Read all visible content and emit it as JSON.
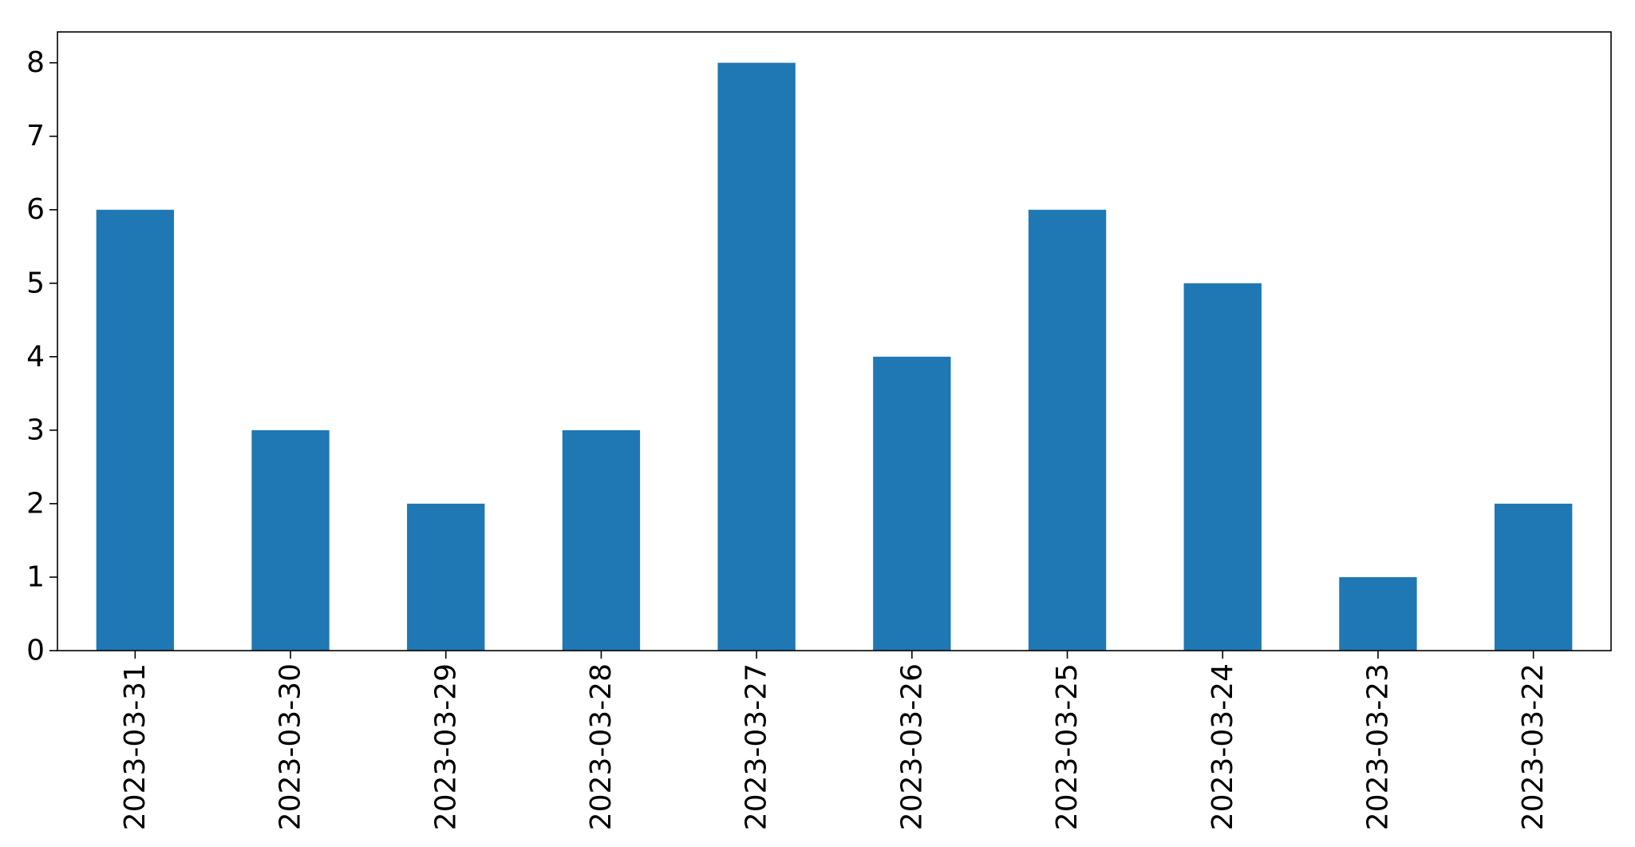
{
  "chart_data": {
    "type": "bar",
    "categories": [
      "2023-03-31",
      "2023-03-30",
      "2023-03-29",
      "2023-03-28",
      "2023-03-27",
      "2023-03-26",
      "2023-03-25",
      "2023-03-24",
      "2023-03-23",
      "2023-03-22"
    ],
    "values": [
      6,
      3,
      2,
      3,
      8,
      4,
      6,
      5,
      1,
      2
    ],
    "y_ticks": [
      0,
      1,
      2,
      3,
      4,
      5,
      6,
      7,
      8
    ],
    "ylim": [
      0,
      8.42
    ],
    "title": "",
    "xlabel": "",
    "ylabel": "",
    "grid": false,
    "legend": "none",
    "bar_color": "#1f77b4"
  }
}
